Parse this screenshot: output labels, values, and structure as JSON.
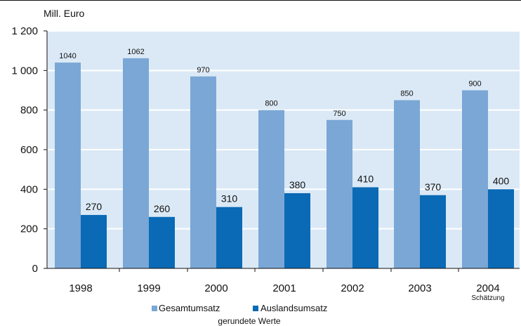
{
  "chart_data": {
    "type": "bar",
    "ylabel": "Mill. Euro",
    "ylim": [
      0,
      1200
    ],
    "y_ticks": [
      0,
      200,
      400,
      600,
      800,
      1000,
      1200
    ],
    "y_tick_labels": [
      "0",
      "200",
      "400",
      "600",
      "800",
      "1 000",
      "1 200"
    ],
    "categories": [
      "1998",
      "1999",
      "2000",
      "2001",
      "2002",
      "2003",
      "2004"
    ],
    "category_subtitles": [
      "",
      "",
      "",
      "",
      "",
      "",
      "Schätzung"
    ],
    "series": [
      {
        "name": "Gesamtumsatz",
        "color": "#7aa7d5",
        "values": [
          1040,
          1062,
          970,
          800,
          750,
          850,
          900
        ],
        "labels": [
          "1040",
          "1062",
          "970",
          "800",
          "750",
          "850",
          "900"
        ]
      },
      {
        "name": "Auslandsumsatz",
        "color": "#0a6ab5",
        "values": [
          270,
          260,
          310,
          380,
          410,
          370,
          400
        ],
        "labels": [
          "270",
          "260",
          "310",
          "380",
          "410",
          "370",
          "400"
        ]
      }
    ],
    "grid": true,
    "plot_background": "#dbe9f6",
    "gridline_color": "#ffffff",
    "legend_placement": "bottom",
    "note": "gerundete Werte"
  }
}
